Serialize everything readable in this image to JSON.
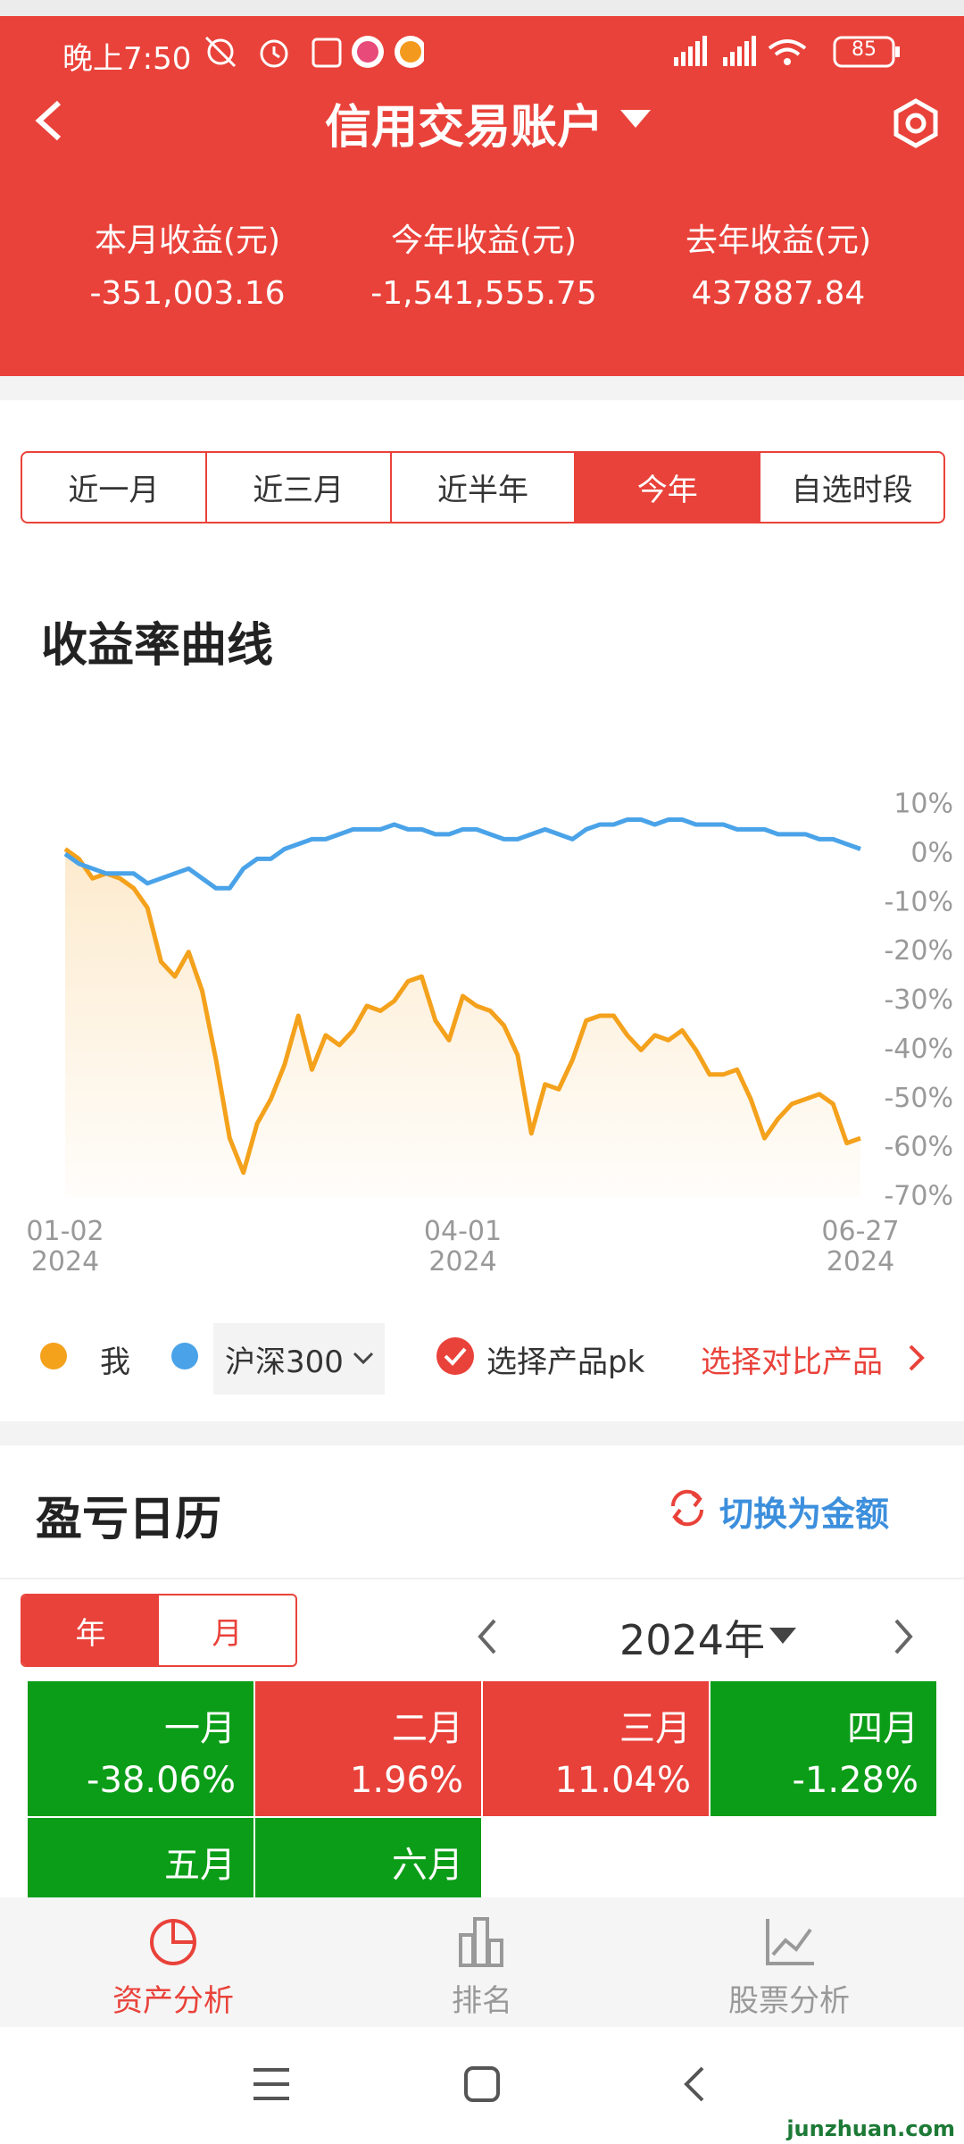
{
  "status_bar": {
    "time": "晚上7:50",
    "battery": "85"
  },
  "header": {
    "title": "信用交易账户",
    "stats": [
      {
        "label": "本月收益(元)",
        "value": "-351,003.16"
      },
      {
        "label": "今年收益(元)",
        "value": "-1,541,555.75"
      },
      {
        "label": "去年收益(元)",
        "value": "437887.84"
      }
    ]
  },
  "tabs": {
    "items": [
      "近一月",
      "近三月",
      "近半年",
      "今年",
      "自选时段"
    ],
    "active": 3
  },
  "chart_data": {
    "type": "line",
    "title": "收益率曲线",
    "categories": [
      "01-02\n2024",
      null,
      null,
      null,
      null,
      null,
      null,
      null,
      null,
      null,
      null,
      null,
      null,
      null,
      null,
      null,
      null,
      null,
      null,
      null,
      null,
      null,
      null,
      null,
      null,
      null,
      null,
      null,
      null,
      "04-01\n2024",
      null,
      null,
      null,
      null,
      null,
      null,
      null,
      null,
      null,
      null,
      null,
      null,
      null,
      null,
      null,
      null,
      null,
      null,
      null,
      null,
      null,
      null,
      null,
      null,
      null,
      null,
      null,
      null,
      "06-27\n2024"
    ],
    "series": [
      {
        "name": "我",
        "color": "#f4a11c",
        "area": true,
        "values": [
          1,
          -1,
          -5,
          -4,
          -5,
          -7,
          -11,
          -22,
          -25,
          -20,
          -28,
          -42,
          -58,
          -65,
          -55,
          -50,
          -43,
          -33,
          -44,
          -37,
          -39,
          -36,
          -31,
          -32,
          -30,
          -26,
          -25,
          -34,
          -38,
          -29,
          -31,
          -32,
          -35,
          -41,
          -57,
          -47,
          -48,
          -42,
          -34,
          -33,
          -33,
          -37,
          -40,
          -37,
          -38,
          -36,
          -40,
          -45,
          -45,
          -44,
          -50,
          -58,
          -54,
          -51,
          -50,
          -49,
          -51,
          -59,
          -58
        ]
      },
      {
        "name": "沪深300",
        "color": "#4aa3e8",
        "area": false,
        "values": [
          0,
          -2,
          -3,
          -4,
          -4,
          -4,
          -6,
          -5,
          -4,
          -3,
          -5,
          -7,
          -7,
          -3,
          -1,
          -1,
          1,
          2,
          3,
          3,
          4,
          5,
          5,
          5,
          6,
          5,
          5,
          4,
          4,
          5,
          5,
          4,
          3,
          3,
          4,
          5,
          4,
          3,
          5,
          6,
          6,
          7,
          7,
          6,
          7,
          7,
          6,
          6,
          6,
          5,
          5,
          5,
          4,
          4,
          4,
          3,
          3,
          2,
          1
        ]
      }
    ],
    "ylim": [
      -70,
      10
    ],
    "yticks": [
      {
        "value": 10,
        "label": "10%"
      },
      {
        "value": 0,
        "label": "0%"
      },
      {
        "value": -10,
        "label": "-10%"
      },
      {
        "value": -20,
        "label": "-20%"
      },
      {
        "value": -30,
        "label": "-30%"
      },
      {
        "value": -40,
        "label": "-40%"
      },
      {
        "value": -50,
        "label": "-50%"
      },
      {
        "value": -60,
        "label": "-60%"
      },
      {
        "value": -70,
        "label": "-70%"
      }
    ],
    "grid": false
  },
  "legend_actions": {
    "pk": "选择产品pk",
    "compare": "选择对比产品"
  },
  "calendar": {
    "title": "盈亏日历",
    "switch": "切换为金额",
    "modes": [
      "年",
      "月"
    ],
    "active_mode": 0,
    "year": "2024年",
    "months": [
      {
        "name": "一月",
        "value": "-38.06%",
        "color": "#0c9d18"
      },
      {
        "name": "二月",
        "value": "1.96%",
        "color": "#e8413a"
      },
      {
        "name": "三月",
        "value": "11.04%",
        "color": "#e8413a"
      },
      {
        "name": "四月",
        "value": "-1.28%",
        "color": "#0c9d18"
      },
      {
        "name": "五月",
        "color": "#0c9d18"
      },
      {
        "name": "六月",
        "color": "#0c9d18"
      }
    ]
  },
  "bottom_nav": {
    "items": [
      "资产分析",
      "排名",
      "股票分析"
    ],
    "active": 0
  },
  "watermark": "junzhuan.com"
}
